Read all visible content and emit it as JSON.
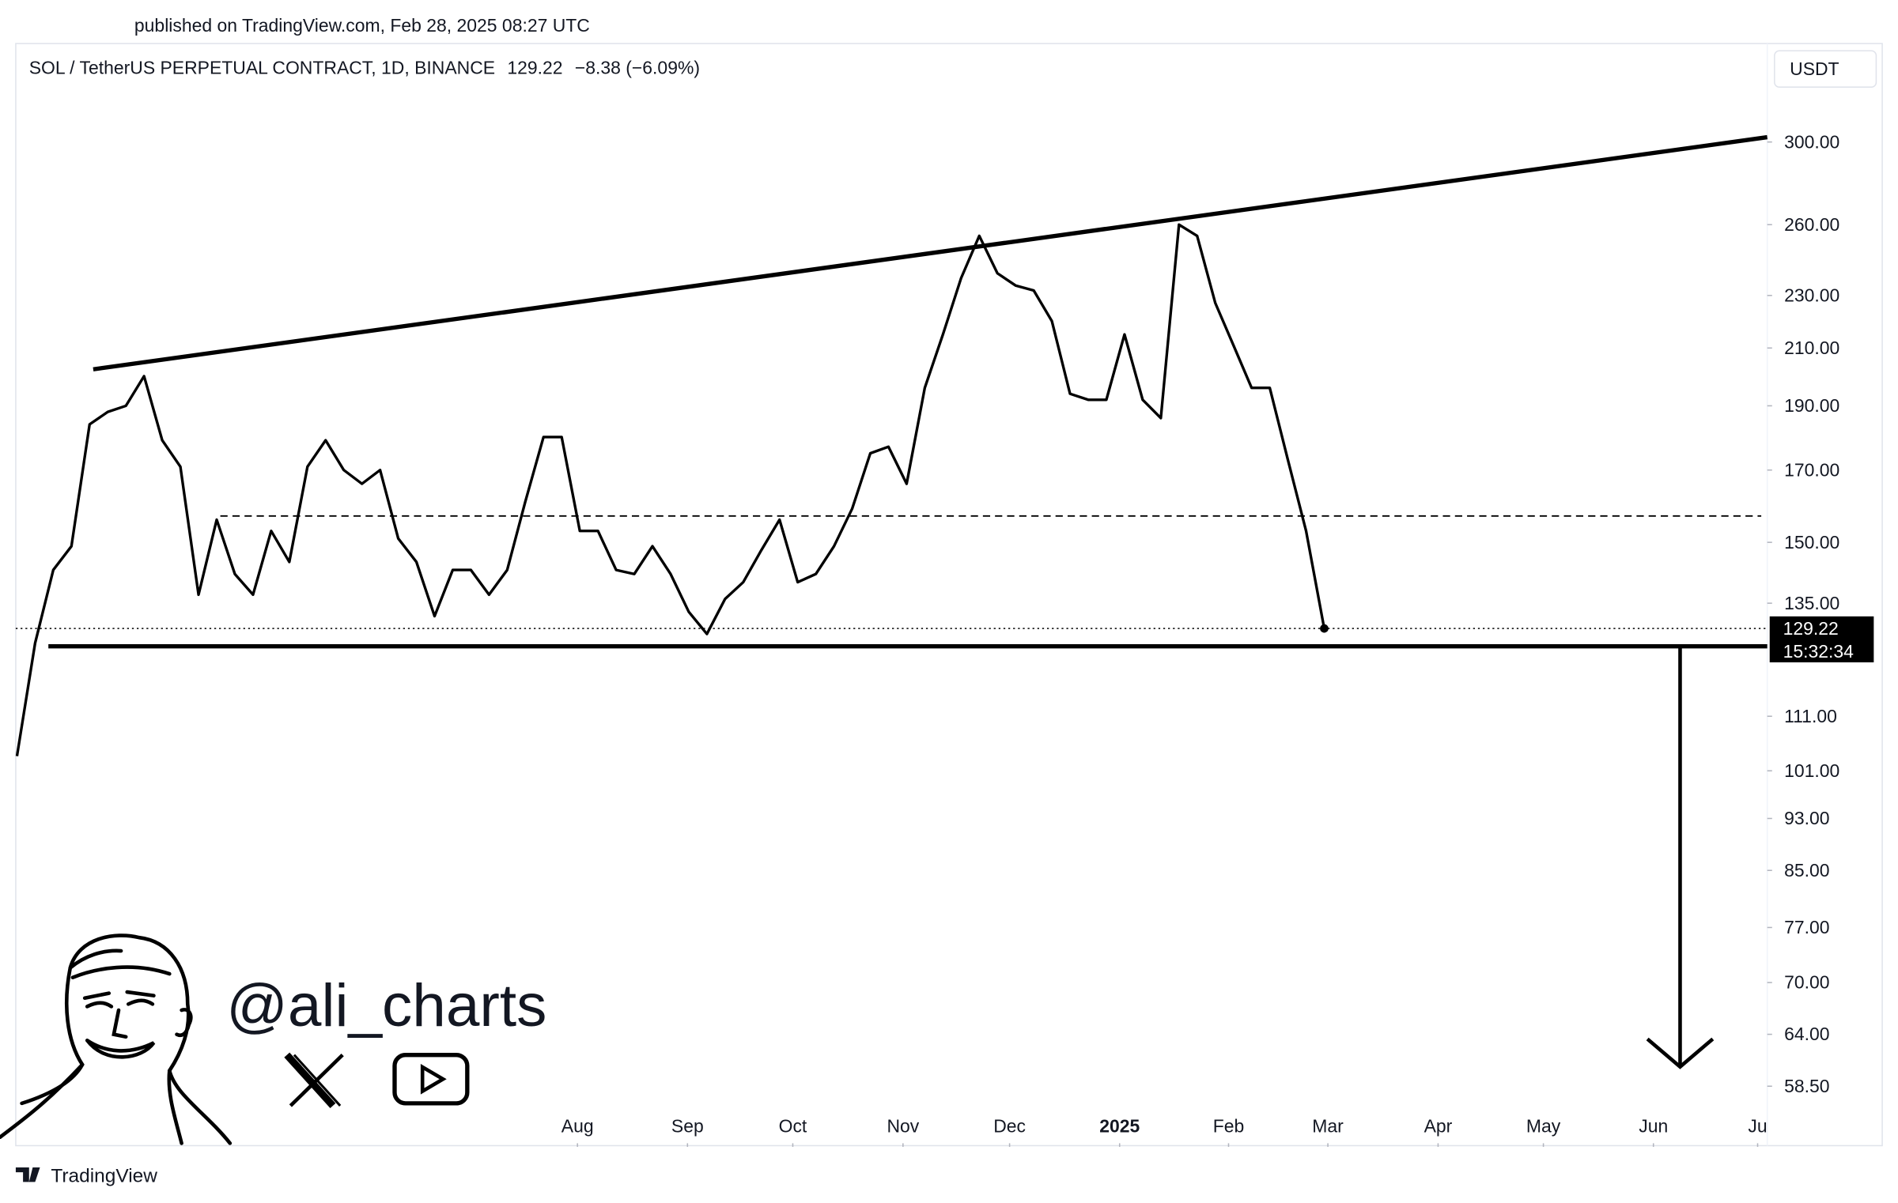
{
  "published": "published on TradingView.com, Feb 28, 2025 08:27 UTC",
  "chart_data": {
    "type": "line",
    "symbol": "SOL / TetherUS PERPETUAL CONTRACT, 1D, BINANCE",
    "last_price": 129.22,
    "change": "−8.38 (−6.09%)",
    "currency": "USDT",
    "countdown": "15:32:34",
    "color": "#000000",
    "log_scale": true,
    "grid": false,
    "values": [
      103.6,
      126,
      143,
      149,
      184,
      188,
      190,
      200,
      179,
      171,
      137,
      156,
      142,
      137,
      153,
      145,
      171,
      179,
      170,
      166,
      170,
      151,
      145,
      132,
      143,
      143,
      137,
      143,
      161,
      180,
      180,
      153,
      153,
      143,
      142,
      149,
      142,
      133,
      128,
      136,
      140,
      148,
      156,
      140,
      142,
      149,
      159,
      175,
      177,
      166,
      196,
      215,
      237,
      255,
      239,
      234,
      232,
      220,
      194,
      192,
      192,
      215,
      192,
      186,
      260,
      255,
      227,
      211,
      196,
      196,
      173,
      153,
      129.22
    ],
    "xlim": [
      0,
      96.4
    ],
    "xticks": [
      {
        "value": 30.87,
        "label": "Aug"
      },
      {
        "value": 36.93,
        "label": "Sep"
      },
      {
        "value": 42.73,
        "label": "Oct"
      },
      {
        "value": 48.8,
        "label": "Nov"
      },
      {
        "value": 54.67,
        "label": "Dec"
      },
      {
        "value": 60.73,
        "label": "2025"
      },
      {
        "value": 66.73,
        "label": "Feb"
      },
      {
        "value": 72.2,
        "label": "Mar"
      },
      {
        "value": 78.27,
        "label": "Apr"
      },
      {
        "value": 84.07,
        "label": "May"
      },
      {
        "value": 90.13,
        "label": "Jun"
      },
      {
        "value": 95.87,
        "label": "Ju"
      }
    ],
    "ylim": [
      53,
      355
    ],
    "yticks": [
      {
        "value": 300,
        "label": "300.00"
      },
      {
        "value": 260,
        "label": "260.00"
      },
      {
        "value": 230,
        "label": "230.00"
      },
      {
        "value": 210,
        "label": "210.00"
      },
      {
        "value": 190,
        "label": "190.00"
      },
      {
        "value": 170,
        "label": "170.00"
      },
      {
        "value": 150,
        "label": "150.00"
      },
      {
        "value": 135,
        "label": "135.00"
      },
      {
        "value": 111,
        "label": "111.00"
      },
      {
        "value": 101,
        "label": "101.00"
      },
      {
        "value": 93,
        "label": "93.00"
      },
      {
        "value": 85,
        "label": "85.00"
      },
      {
        "value": 77,
        "label": "77.00"
      },
      {
        "value": 70,
        "label": "70.00"
      },
      {
        "value": 64,
        "label": "64.00"
      },
      {
        "value": 58.5,
        "label": "58.50"
      }
    ],
    "resistance": {
      "x": [
        4.2,
        96.4
      ],
      "y": [
        202.4,
        302.5
      ]
    },
    "support": {
      "x": [
        1.73,
        96.4
      ],
      "y": 125.3
    },
    "range_mid": {
      "x": [
        11.2,
        96.07
      ],
      "y": 157
    },
    "target": {
      "x": 91.6,
      "y": [
        125.3,
        60.5
      ]
    }
  },
  "watermark": {
    "handle": "@ali_charts"
  },
  "footer": {
    "brand": "TradingView"
  }
}
